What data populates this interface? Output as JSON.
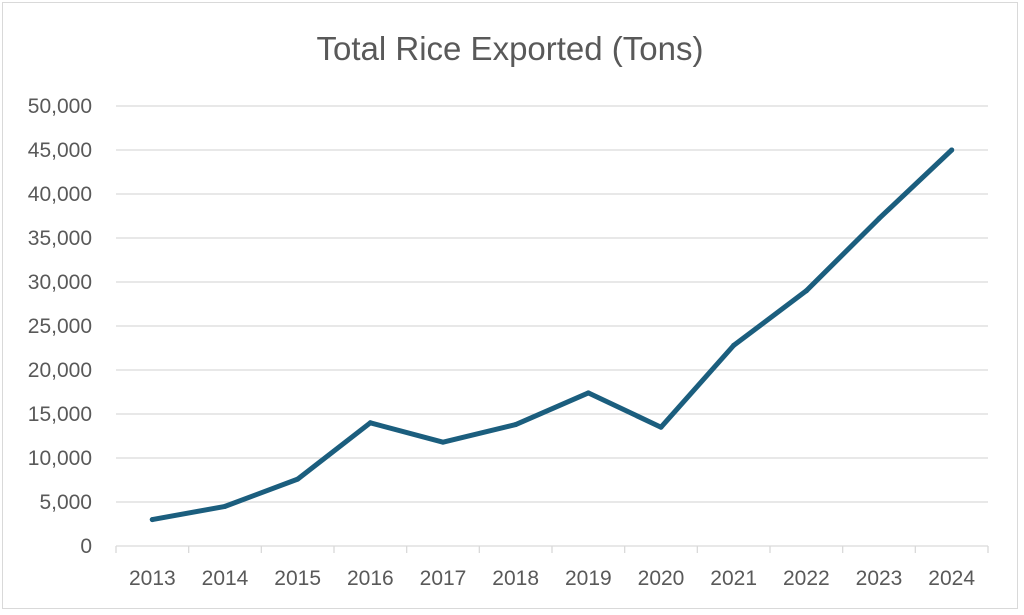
{
  "chart_data": {
    "type": "line",
    "title": "Total Rice Exported (Tons)",
    "xlabel": "",
    "ylabel": "",
    "categories": [
      "2013",
      "2014",
      "2015",
      "2016",
      "2017",
      "2018",
      "2019",
      "2020",
      "2021",
      "2022",
      "2023",
      "2024"
    ],
    "series": [
      {
        "values": [
          3000,
          4500,
          7600,
          14000,
          11800,
          13800,
          17400,
          13500,
          22800,
          29000,
          37200,
          45000
        ]
      }
    ],
    "ylim": [
      0,
      50000
    ],
    "yticks": [
      0,
      5000,
      10000,
      15000,
      20000,
      25000,
      30000,
      35000,
      40000,
      45000,
      50000
    ],
    "ytick_labels": [
      "0",
      "5,000",
      "10,000",
      "15,000",
      "20,000",
      "25,000",
      "30,000",
      "35,000",
      "40,000",
      "45,000",
      "50,000"
    ],
    "grid": true,
    "legend": "none",
    "line_color": "#1b5e7e",
    "grid_color": "#d9d9d9",
    "text_color": "#595959"
  }
}
